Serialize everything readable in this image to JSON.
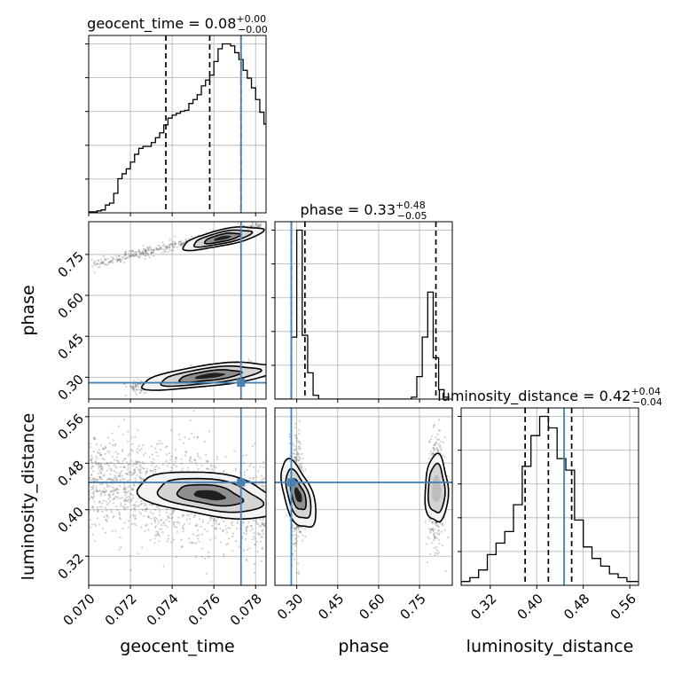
{
  "chart_data": {
    "type": "corner",
    "parameters": [
      {
        "name": "geocent_time",
        "axis_label": "geocent_time",
        "range": [
          0.07,
          0.0785
        ],
        "ticks": [
          0.07,
          0.072,
          0.074,
          0.076,
          0.078
        ],
        "tick_labels": [
          "0.070",
          "0.072",
          "0.074",
          "0.076",
          "0.078"
        ],
        "truth": 0.0773,
        "quantiles": [
          0.0737,
          0.0758,
          0.0773
        ],
        "title": {
          "base": "geocent_time = 0.08",
          "sup": "+0.00",
          "sub": "−0.00"
        },
        "hist_bin_edges": [
          0.07,
          0.0702,
          0.0704,
          0.0706,
          0.0708,
          0.071,
          0.0712,
          0.0714,
          0.0716,
          0.0718,
          0.072,
          0.0722,
          0.0724,
          0.0726,
          0.0728,
          0.073,
          0.0732,
          0.0734,
          0.0736,
          0.0738,
          0.074,
          0.0742,
          0.0744,
          0.0746,
          0.0748,
          0.075,
          0.0752,
          0.0754,
          0.0756,
          0.0758,
          0.076,
          0.0762,
          0.0764,
          0.0766,
          0.0768,
          0.077,
          0.0772,
          0.0774,
          0.0776,
          0.0778,
          0.078,
          0.0782,
          0.0784,
          0.0786
        ],
        "hist_counts": [
          1,
          1,
          2,
          3,
          8,
          10,
          20,
          35,
          40,
          45,
          52,
          60,
          66,
          68,
          68,
          72,
          77,
          82,
          90,
          97,
          100,
          102,
          104,
          105,
          112,
          116,
          121,
          130,
          136,
          141,
          155,
          168,
          173,
          173,
          171,
          164,
          157,
          146,
          138,
          128,
          116,
          103,
          91
        ]
      },
      {
        "name": "phase",
        "axis_label": "phase",
        "range": [
          0.22,
          0.87
        ],
        "ticks": [
          0.3,
          0.45,
          0.6,
          0.75
        ],
        "tick_labels": [
          "0.30",
          "0.45",
          "0.60",
          "0.75"
        ],
        "truth": 0.28,
        "quantiles": [
          0.28,
          0.33,
          0.81
        ],
        "title": {
          "base": "phase = 0.33",
          "sup": "+0.48",
          "sub": "−0.05"
        },
        "hist_bin_edges": [
          0.22,
          0.24,
          0.26,
          0.28,
          0.3,
          0.32,
          0.34,
          0.36,
          0.38,
          0.4,
          0.42,
          0.44,
          0.46,
          0.48,
          0.5,
          0.52,
          0.54,
          0.56,
          0.58,
          0.6,
          0.62,
          0.64,
          0.66,
          0.68,
          0.7,
          0.72,
          0.74,
          0.76,
          0.78,
          0.8,
          0.82,
          0.84,
          0.86
        ],
        "hist_counts": [
          0,
          0,
          0,
          33,
          90,
          34,
          14,
          2,
          0,
          0,
          0,
          0,
          0,
          0,
          0,
          0,
          0,
          0,
          0,
          0,
          0,
          0,
          0,
          0,
          0,
          1,
          12,
          33,
          57,
          22,
          5,
          1
        ]
      },
      {
        "name": "luminosity_distance",
        "axis_label": "luminosity_distance",
        "range": [
          0.27,
          0.575
        ],
        "ticks": [
          0.32,
          0.4,
          0.48,
          0.56
        ],
        "tick_labels": [
          "0.32",
          "0.40",
          "0.48",
          "0.56"
        ],
        "truth": 0.447,
        "quantiles": [
          0.38,
          0.42,
          0.46
        ],
        "title": {
          "base": "luminosity_distance = 0.42",
          "sup": "+0.04",
          "sub": "−0.04"
        },
        "hist_bin_edges": [
          0.27,
          0.285,
          0.3,
          0.315,
          0.33,
          0.345,
          0.36,
          0.375,
          0.39,
          0.405,
          0.42,
          0.435,
          0.45,
          0.465,
          0.48,
          0.495,
          0.51,
          0.525,
          0.54,
          0.555,
          0.57,
          0.585
        ],
        "hist_counts": [
          1,
          2,
          4,
          8,
          11,
          14,
          21,
          31,
          39,
          44,
          41,
          33,
          30,
          17,
          10,
          7,
          5,
          3,
          2,
          1,
          1
        ]
      }
    ],
    "hist_scale": {
      "y": "counts"
    },
    "truth_color": "#4682b4",
    "scatter_color": "#555555",
    "contour_color": "#000000",
    "density_color": "#000000",
    "grid": true,
    "samples": {
      "time_phase_low": {
        "x": [
          0.072,
          0.0782
        ],
        "y_center": [
          0.262,
          0.338
        ],
        "spread_x": 0.00065,
        "spread_y": 0.012,
        "n": 600
      },
      "time_phase_high": {
        "x": [
          0.0703,
          0.0782
        ],
        "y_center": [
          0.715,
          0.855
        ],
        "spread_x": 0.00055,
        "spread_y": 0.009,
        "n": 420
      },
      "time_dist": {
        "x": [
          0.07,
          0.0785
        ],
        "y_center": [
          0.45,
          0.4
        ],
        "spread_x": 0.0013,
        "spread_y": 0.042,
        "n": 1400
      },
      "phase_dist_low": {
        "x_center": 0.3,
        "spread_x": 0.013,
        "y_center": 0.43,
        "spread_y": 0.045,
        "n": 500
      },
      "phase_dist_high": {
        "x_center": 0.81,
        "spread_x": 0.014,
        "y_center": 0.43,
        "spread_y": 0.045,
        "n": 500
      }
    }
  }
}
